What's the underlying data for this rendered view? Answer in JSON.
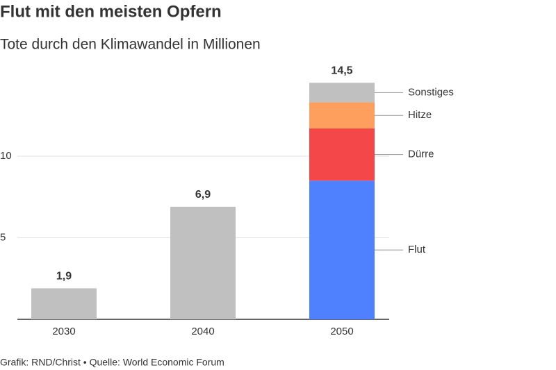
{
  "chart_data": {
    "type": "stacked-bar",
    "title": "Flut mit den meisten Opfern",
    "subtitle": "Tote durch den Klimawandel in Millionen",
    "source": "Grafik: RND/Christ • Quelle: World Economic Forum",
    "categories": [
      "2030",
      "2040",
      "2050"
    ],
    "series": [
      {
        "name": "Flut",
        "color": "#4f81ff",
        "values": [
          null,
          null,
          8.5
        ]
      },
      {
        "name": "Dürre",
        "color": "#f4474a",
        "values": [
          null,
          null,
          3.2
        ]
      },
      {
        "name": "Hitze",
        "color": "#ff9f5e",
        "values": [
          null,
          null,
          1.6
        ]
      },
      {
        "name": "Sonstiges",
        "color": "#c0c0c0",
        "values": [
          1.9,
          6.9,
          1.2
        ]
      }
    ],
    "totals": [
      1.9,
      6.9,
      14.5
    ],
    "total_labels": [
      "1,9",
      "6,9",
      "14,5"
    ],
    "ylim": [
      0,
      15
    ],
    "yticks": [
      5,
      10
    ],
    "grid": true
  }
}
